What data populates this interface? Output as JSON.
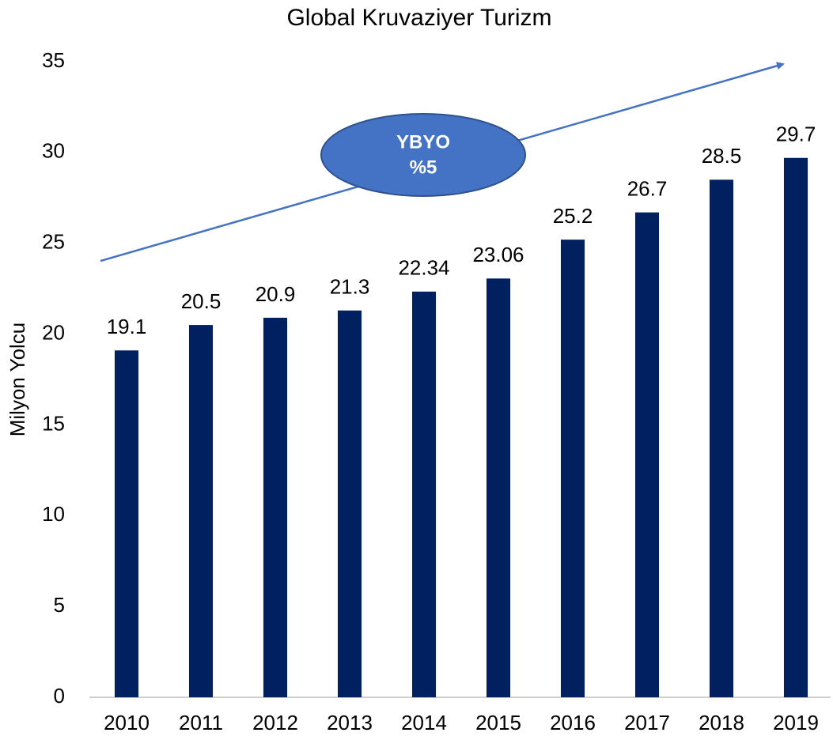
{
  "chart_data": {
    "type": "bar",
    "title": "Global Kruvaziyer Turizm",
    "y_label": "Milyon Yolcu",
    "categories": [
      "2010",
      "2011",
      "2012",
      "2013",
      "2014",
      "2015",
      "2016",
      "2017",
      "2018",
      "2019"
    ],
    "values": [
      19.1,
      20.5,
      20.9,
      21.3,
      22.34,
      23.06,
      25.2,
      26.7,
      28.5,
      29.7
    ],
    "color": "#002060",
    "ylim": [
      0,
      35
    ],
    "yticks": [
      0,
      5,
      10,
      15,
      20,
      25,
      30,
      35
    ],
    "grid": false,
    "annotation": [
      "YBYO",
      "%5"
    ]
  }
}
